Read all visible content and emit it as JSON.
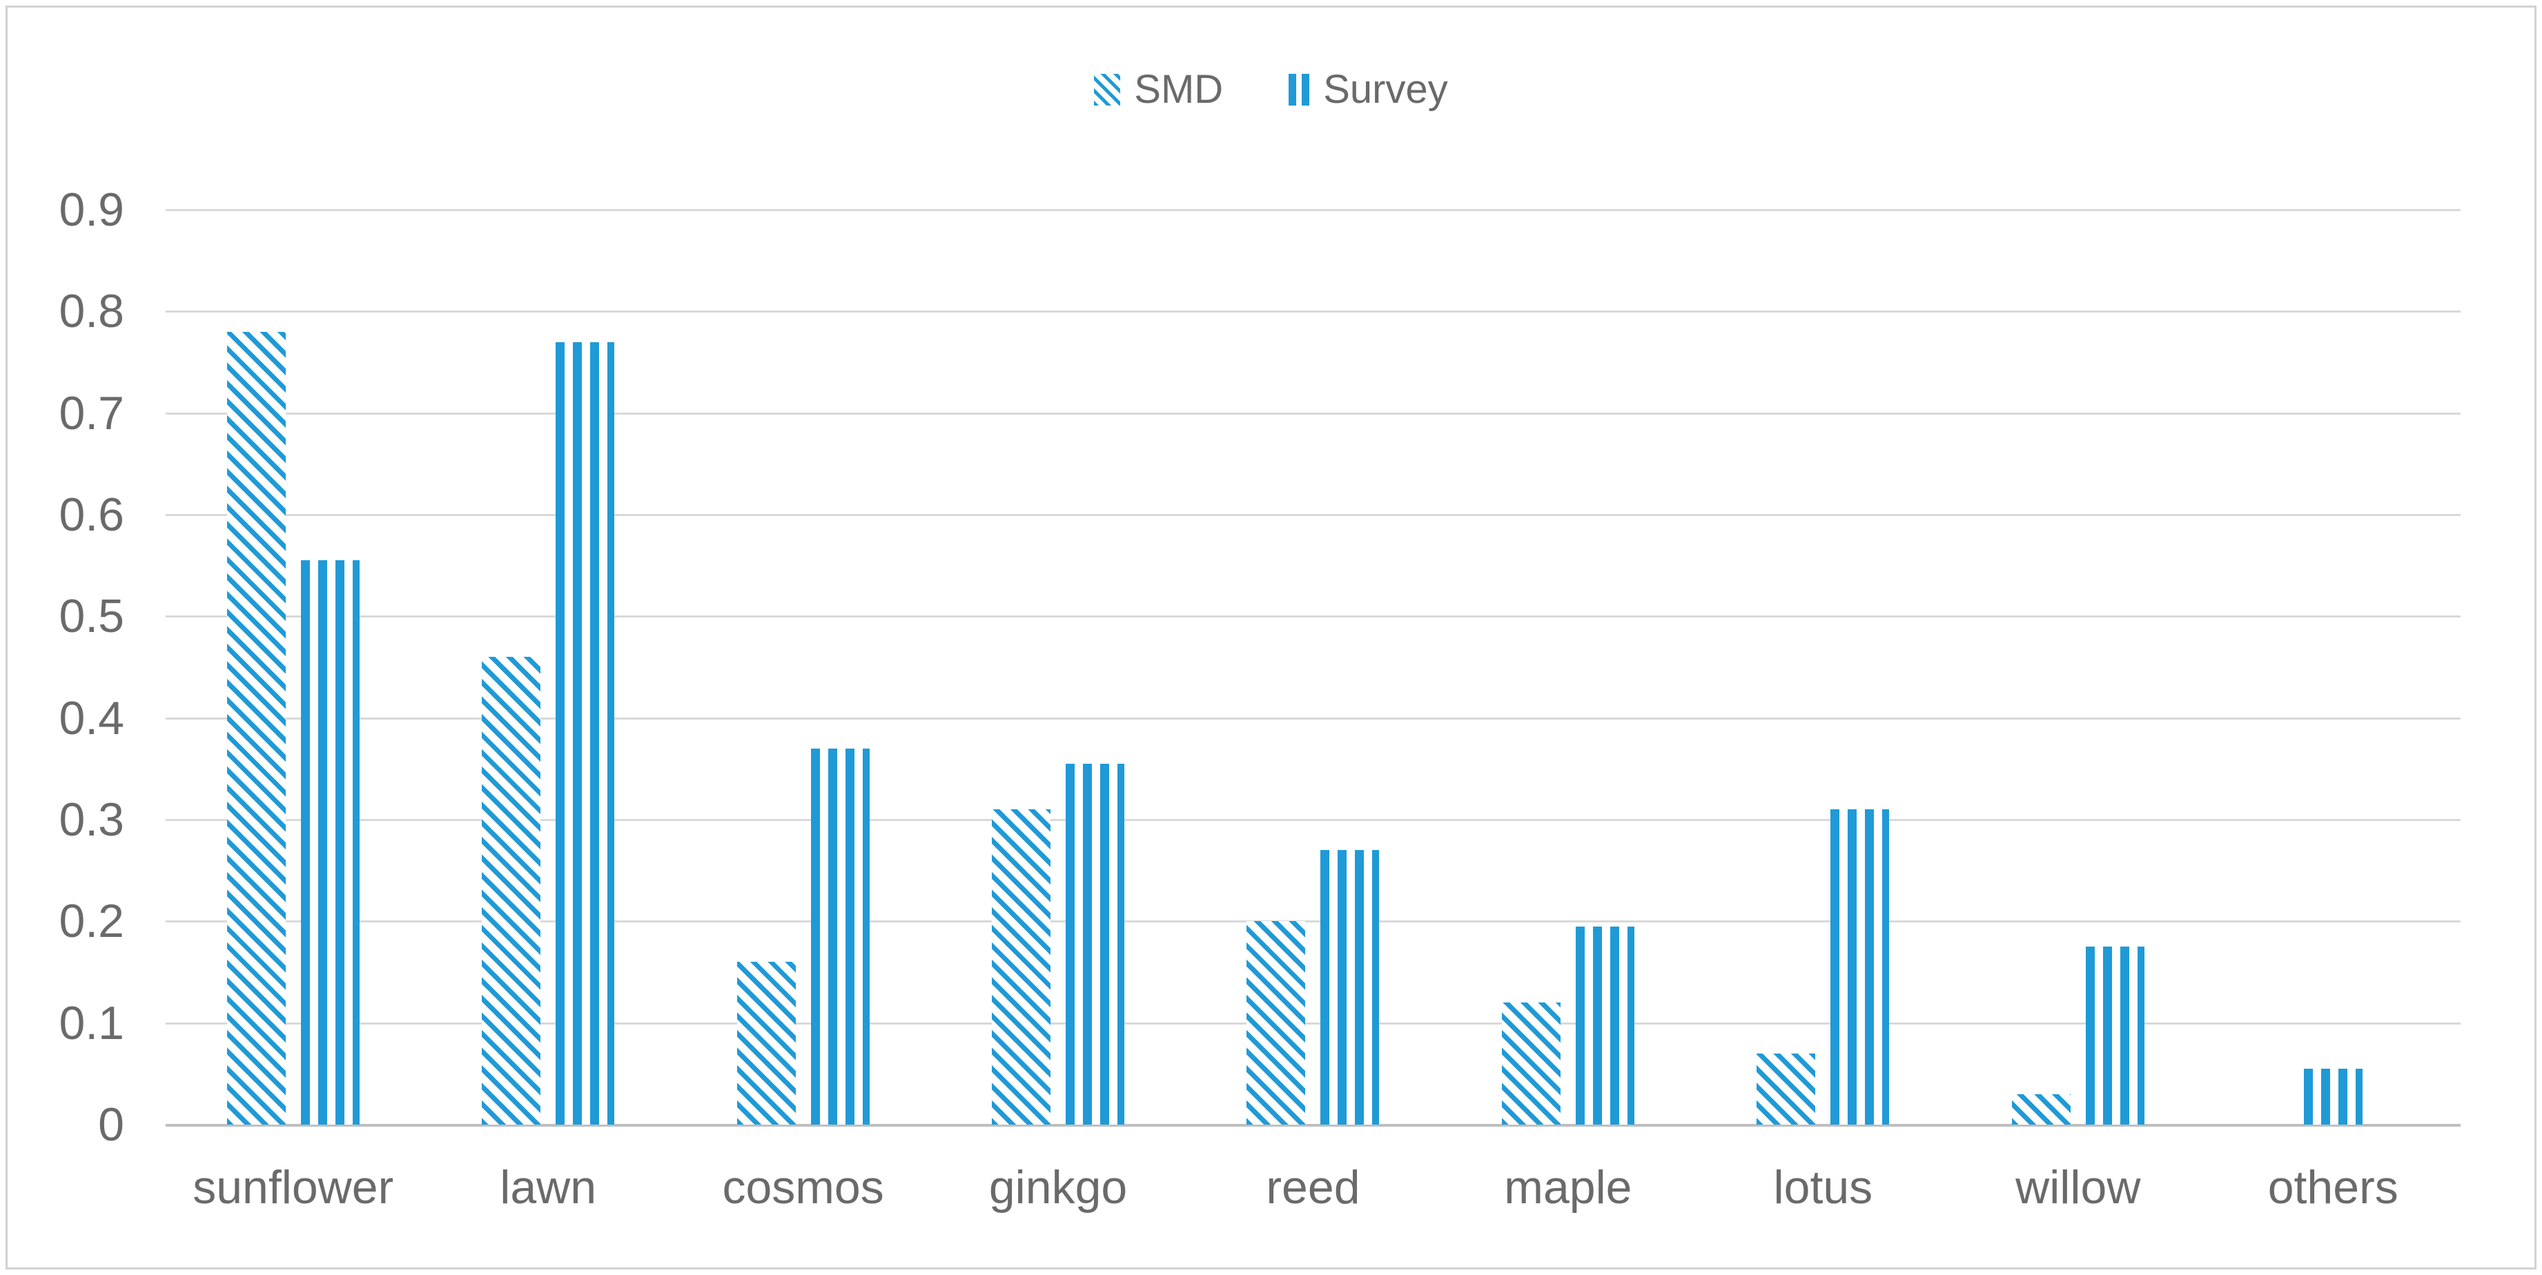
{
  "figure": {
    "kind": "clustered pattern bar chart",
    "background": "#ffffff"
  },
  "legend": {
    "position": "top-center",
    "items": [
      {
        "label": "SMD",
        "swatch": "diagonal-hatch-swatch"
      },
      {
        "label": "Survey",
        "swatch": "vertical-stripes-swatch"
      }
    ]
  },
  "chart_data": {
    "type": "bar",
    "title": "",
    "xlabel": "",
    "ylabel": "",
    "categories": [
      "sunflower",
      "lawn",
      "cosmos",
      "ginkgo",
      "reed",
      "maple",
      "lotus",
      "willow",
      "others"
    ],
    "series": [
      {
        "name": "SMD",
        "pattern": "diagonal-hatch",
        "values": [
          0.78,
          0.46,
          0.16,
          0.31,
          0.2,
          0.12,
          0.07,
          0.03,
          0
        ]
      },
      {
        "name": "Survey",
        "pattern": "vertical-stripes",
        "values": [
          0.555,
          0.77,
          0.37,
          0.355,
          0.27,
          0.195,
          0.31,
          0.175,
          0.055
        ]
      }
    ],
    "ylim": [
      0,
      0.9
    ],
    "yticks": [
      "0.9",
      "0.8",
      "0.7",
      "0.6",
      "0.5",
      "0.4",
      "0.3",
      "0.2",
      "0.1",
      "0"
    ],
    "grid": true,
    "legend_position": "top"
  },
  "colors": {
    "bar_blue": "#1f9ad7",
    "gridline": "#d9d9d9",
    "baseline": "#bfbfbf",
    "label_text": "#6a6a6a",
    "figure_border": "#d2d2d2"
  }
}
